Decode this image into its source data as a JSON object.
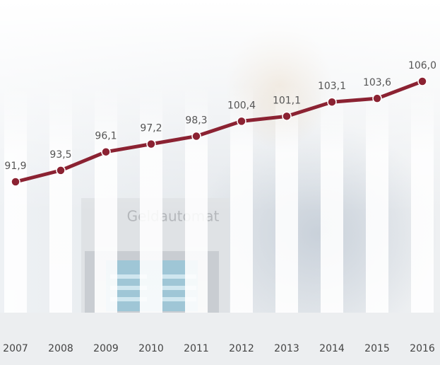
{
  "chart_data": {
    "type": "line",
    "categories": [
      "2007",
      "2008",
      "2009",
      "2010",
      "2011",
      "2012",
      "2013",
      "2014",
      "2015",
      "2016"
    ],
    "series": [
      {
        "color": "#8b2232",
        "values": [
          91.9,
          93.5,
          96.1,
          97.2,
          98.3,
          100.4,
          101.1,
          103.1,
          103.6,
          106.0
        ],
        "value_labels": [
          "91,9",
          "93,5",
          "96,1",
          "97,2",
          "98,3",
          "100,4",
          "101,1",
          "103,1",
          "103,6",
          "106,0"
        ]
      }
    ],
    "background_text": "Geldautomat"
  }
}
